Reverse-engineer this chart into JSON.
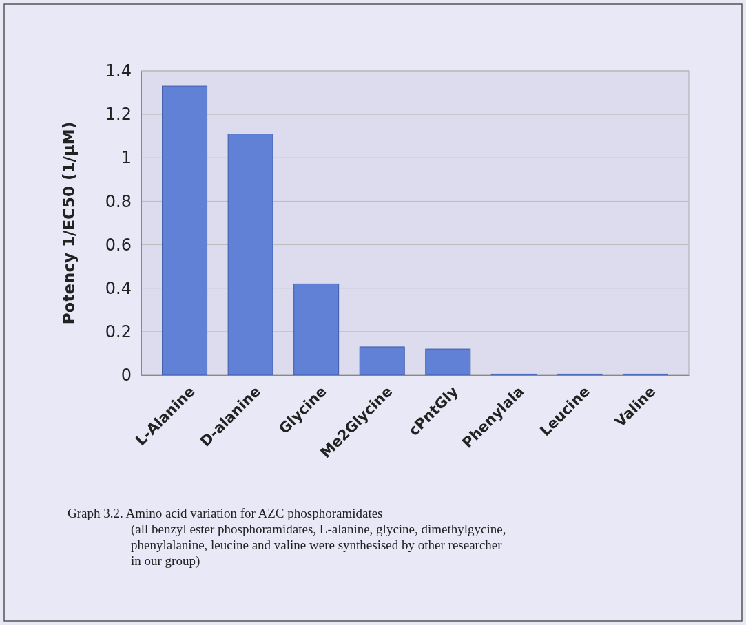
{
  "chart_data": {
    "type": "bar",
    "ylabel": "Potency 1/EC50 (1/µM)",
    "categories": [
      "L-Alanine",
      "D-alanine",
      "Glycine",
      "Me2Glycine",
      "cPntGly",
      "Phenylala",
      "Leucine",
      "Valine"
    ],
    "values": [
      1.33,
      1.11,
      0.42,
      0.13,
      0.12,
      0.005,
      0.005,
      0.005
    ],
    "color": "#6081d6",
    "ylim": [
      0,
      1.4
    ],
    "yticks": [
      0,
      0.2,
      0.4,
      0.6,
      0.8,
      1,
      1.2,
      1.4
    ],
    "grid": "y",
    "annotations": [
      "Graph 3.2. Amino acid variation for AZC phosphoramidates",
      "(all benzyl ester phosphoramidates, L-alanine, glycine, dimethylgycine,",
      "phenylalanine, leucine and valine were synthesised by other researcher",
      "in our group)"
    ]
  }
}
